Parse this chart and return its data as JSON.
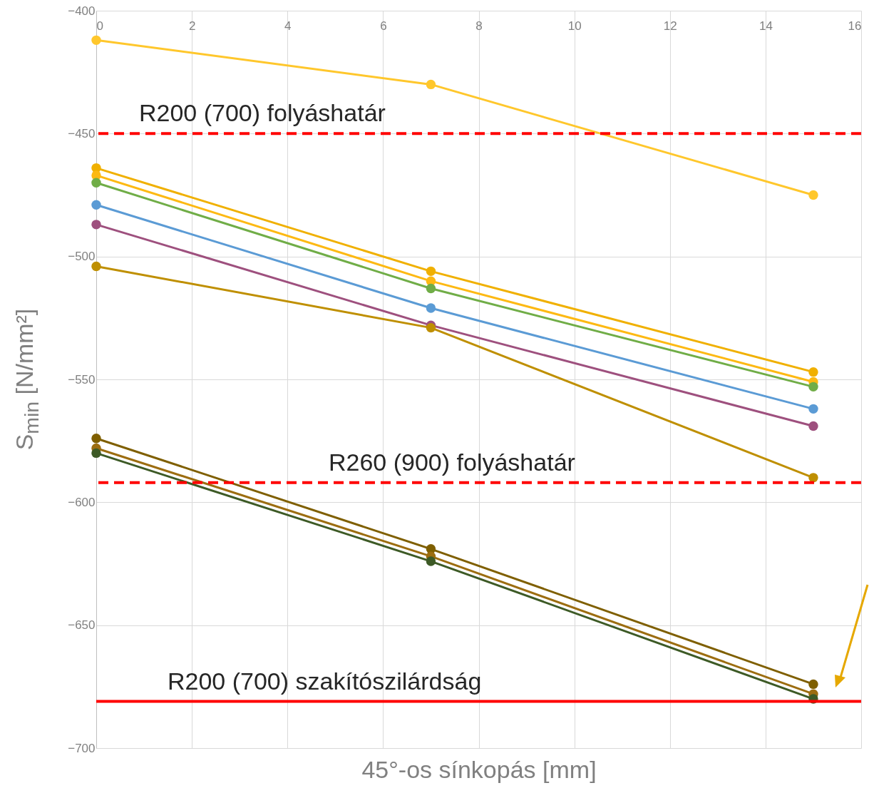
{
  "chart_data": {
    "type": "line",
    "xlabel": "45°-os sínkopás [mm]",
    "ylabel": "S$_{min}$ [N/mm²]",
    "x": [
      0,
      7,
      15
    ],
    "xlim": [
      0,
      16
    ],
    "xticks": [
      0,
      2,
      4,
      6,
      8,
      10,
      12,
      14,
      16
    ],
    "ylim": [
      -700,
      -400
    ],
    "yticks": [
      -700,
      -650,
      -600,
      -550,
      -500,
      -450,
      -400
    ],
    "grid": true,
    "marker": "circle",
    "line_style": "solid",
    "series": [
      {
        "color": "#ffc72c",
        "values": [
          -412,
          -430,
          -475
        ]
      },
      {
        "color": "#f0b000",
        "values": [
          -464,
          -506,
          -547
        ]
      },
      {
        "color": "#fdb913",
        "values": [
          -467,
          -510,
          -551
        ]
      },
      {
        "color": "#70ad47",
        "values": [
          -470,
          -513,
          -553
        ]
      },
      {
        "color": "#5b9bd5",
        "values": [
          -479,
          -521,
          -562
        ]
      },
      {
        "color": "#9e507e",
        "values": [
          -487,
          -528,
          -569
        ]
      },
      {
        "color": "#bf8f00",
        "values": [
          -504,
          -529,
          -590
        ]
      },
      {
        "color": "#7f5f00",
        "values": [
          -574,
          -619,
          -674
        ]
      },
      {
        "color": "#9c6d10",
        "values": [
          -578,
          -622,
          -678
        ]
      },
      {
        "color": "#3d5a26",
        "values": [
          -580,
          -624,
          -680
        ]
      }
    ],
    "ref_lines": [
      {
        "axis": "y",
        "value": -450,
        "label": "R200 (700) folyáshatár",
        "color": "#ff0000",
        "line_style": "dashed"
      },
      {
        "axis": "y",
        "value": -592,
        "label": "R260 (900) folyáshatár",
        "color": "#ff0000",
        "line_style": "dashed"
      },
      {
        "axis": "y",
        "value": -681,
        "label": "R200 (700) szakítószilárdság",
        "color": "#ff0000",
        "line_style": "solid"
      }
    ]
  }
}
